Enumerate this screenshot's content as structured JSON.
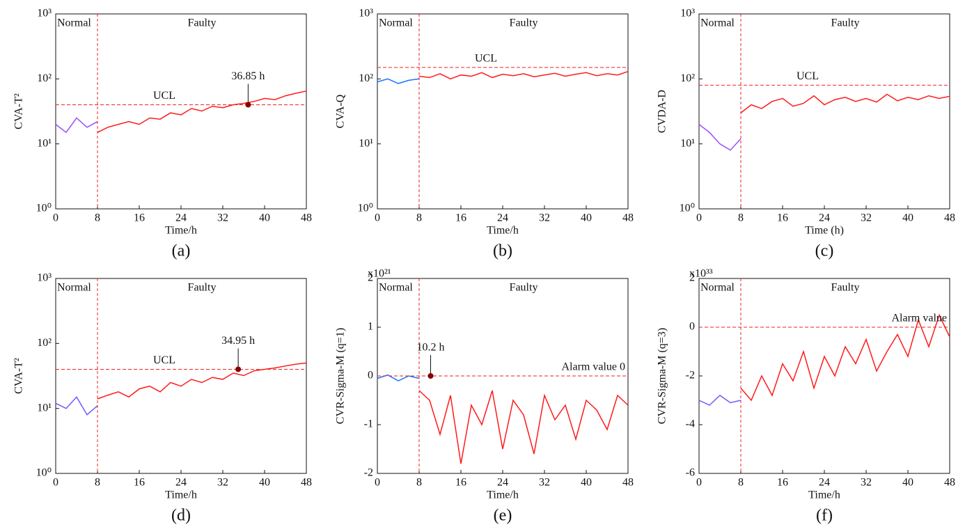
{
  "chart_data": [
    {
      "type": "line",
      "label": "(a)",
      "x_label": "Time/h",
      "y_label": "CVA-T²",
      "log_y": true,
      "ylim": [
        1,
        1000
      ],
      "yticks": [
        {
          "value": 1,
          "label": "10⁰"
        },
        {
          "value": 10,
          "label": "10¹"
        },
        {
          "value": 100,
          "label": "10²"
        },
        {
          "value": 1000,
          "label": "10³"
        }
      ],
      "xlim": [
        0,
        48
      ],
      "xticks": [
        0,
        8,
        16,
        24,
        32,
        40,
        48
      ],
      "normal_text": "Normal",
      "faulty_text": "Faulty",
      "fault_time": 8,
      "threshold": {
        "value": 40,
        "label": "UCL"
      },
      "detection": {
        "x": 36.85,
        "label": "36.85 h"
      },
      "series": [
        {
          "color": "#9b4dff",
          "x": [
            0,
            2,
            4,
            6,
            8
          ],
          "values": [
            20,
            15,
            25,
            18,
            22
          ]
        },
        {
          "color": "#ff1a1a",
          "x": [
            8,
            10,
            12,
            14,
            16,
            18,
            20,
            22,
            24,
            26,
            28,
            30,
            32,
            34,
            36,
            38,
            40,
            42,
            44,
            46,
            48
          ],
          "values": [
            15,
            18,
            20,
            22,
            20,
            25,
            24,
            30,
            28,
            35,
            32,
            38,
            36,
            40,
            42,
            45,
            50,
            48,
            55,
            60,
            65
          ]
        }
      ]
    },
    {
      "type": "line",
      "label": "(b)",
      "x_label": "Time/h",
      "y_label": "CVA-Q",
      "log_y": true,
      "ylim": [
        1,
        1000
      ],
      "yticks": [
        {
          "value": 1,
          "label": "10⁰"
        },
        {
          "value": 10,
          "label": "10¹"
        },
        {
          "value": 100,
          "label": "10²"
        },
        {
          "value": 1000,
          "label": "10³"
        }
      ],
      "xlim": [
        0,
        48
      ],
      "xticks": [
        0,
        8,
        16,
        24,
        32,
        40,
        48
      ],
      "normal_text": "Normal",
      "faulty_text": "Faulty",
      "fault_time": 8,
      "threshold": {
        "value": 150,
        "label": "UCL"
      },
      "series": [
        {
          "color": "#1a73ff",
          "x": [
            0,
            2,
            4,
            6,
            8
          ],
          "values": [
            90,
            100,
            85,
            95,
            100
          ]
        },
        {
          "color": "#ff1a1a",
          "x": [
            8,
            10,
            12,
            14,
            16,
            18,
            20,
            22,
            24,
            26,
            28,
            30,
            32,
            34,
            36,
            38,
            40,
            42,
            44,
            46,
            48
          ],
          "values": [
            110,
            105,
            120,
            100,
            115,
            110,
            125,
            105,
            118,
            112,
            120,
            108,
            115,
            122,
            110,
            118,
            125,
            112,
            120,
            115,
            130
          ]
        }
      ]
    },
    {
      "type": "line",
      "label": "(c)",
      "x_label": "Time (h)",
      "y_label": "CVDA-D",
      "log_y": true,
      "ylim": [
        1,
        1000
      ],
      "yticks": [
        {
          "value": 1,
          "label": "10⁰"
        },
        {
          "value": 10,
          "label": "10¹"
        },
        {
          "value": 100,
          "label": "10²"
        },
        {
          "value": 1000,
          "label": "10³"
        }
      ],
      "xlim": [
        0,
        48
      ],
      "xticks": [
        0,
        8,
        16,
        24,
        32,
        40,
        48
      ],
      "normal_text": "Normal",
      "faulty_text": "Faulty",
      "fault_time": 8,
      "threshold": {
        "value": 80,
        "label": "UCL"
      },
      "series": [
        {
          "color": "#9b4dff",
          "x": [
            0,
            2,
            4,
            6,
            8
          ],
          "values": [
            20,
            15,
            10,
            8,
            12
          ]
        },
        {
          "color": "#ff1a1a",
          "x": [
            8,
            10,
            12,
            14,
            16,
            18,
            20,
            22,
            24,
            26,
            28,
            30,
            32,
            34,
            36,
            38,
            40,
            42,
            44,
            46,
            48
          ],
          "values": [
            30,
            40,
            35,
            45,
            50,
            38,
            42,
            55,
            40,
            48,
            52,
            45,
            50,
            44,
            58,
            46,
            52,
            48,
            55,
            50,
            54
          ]
        }
      ]
    },
    {
      "type": "line",
      "label": "(d)",
      "x_label": "Time/h",
      "y_label": "CVA-T²",
      "log_y": true,
      "ylim": [
        1,
        1000
      ],
      "yticks": [
        {
          "value": 1,
          "label": "10⁰"
        },
        {
          "value": 10,
          "label": "10¹"
        },
        {
          "value": 100,
          "label": "10²"
        },
        {
          "value": 1000,
          "label": "10³"
        }
      ],
      "xlim": [
        0,
        48
      ],
      "xticks": [
        0,
        8,
        16,
        24,
        32,
        40,
        48
      ],
      "normal_text": "Normal",
      "faulty_text": "Faulty",
      "fault_time": 8,
      "threshold": {
        "value": 40,
        "label": "UCL"
      },
      "detection": {
        "x": 34.95,
        "label": "34.95 h"
      },
      "series": [
        {
          "color": "#6a5cff",
          "x": [
            0,
            2,
            4,
            6,
            8
          ],
          "values": [
            12,
            10,
            15,
            8,
            11
          ]
        },
        {
          "color": "#ff1a1a",
          "x": [
            8,
            10,
            12,
            14,
            16,
            18,
            20,
            22,
            24,
            26,
            28,
            30,
            32,
            34,
            36,
            38,
            40,
            42,
            44,
            46,
            48
          ],
          "values": [
            14,
            16,
            18,
            15,
            20,
            22,
            18,
            25,
            22,
            28,
            25,
            30,
            28,
            35,
            32,
            38,
            40,
            42,
            45,
            48,
            50
          ]
        }
      ]
    },
    {
      "type": "line",
      "label": "(e)",
      "x_label": "Time/h",
      "y_label": "CVR-Sigma-M (q=1)",
      "log_y": false,
      "y_multiplier": "x10²¹",
      "ylim": [
        -2,
        2
      ],
      "yticks": [
        -2,
        -1,
        0,
        1,
        2
      ],
      "xlim": [
        0,
        48
      ],
      "xticks": [
        0,
        8,
        16,
        24,
        32,
        40,
        48
      ],
      "normal_text": "Normal",
      "faulty_text": "Faulty",
      "fault_time": 8,
      "threshold": {
        "value": 0,
        "label": "Alarm value 0"
      },
      "detection": {
        "x": 10.2,
        "label": "10.2 h"
      },
      "series": [
        {
          "color": "#1a73ff",
          "x": [
            0,
            2,
            4,
            6,
            8
          ],
          "values": [
            -0.05,
            0.02,
            -0.1,
            0,
            -0.05
          ]
        },
        {
          "color": "#ff1a1a",
          "x": [
            8,
            10,
            12,
            14,
            16,
            18,
            20,
            22,
            24,
            26,
            28,
            30,
            32,
            34,
            36,
            38,
            40,
            42,
            44,
            46,
            48
          ],
          "values": [
            -0.3,
            -0.5,
            -1.2,
            -0.4,
            -1.8,
            -0.6,
            -1.0,
            -0.3,
            -1.5,
            -0.5,
            -0.8,
            -1.6,
            -0.4,
            -0.9,
            -0.6,
            -1.3,
            -0.5,
            -0.7,
            -1.1,
            -0.4,
            -0.6
          ]
        }
      ]
    },
    {
      "type": "line",
      "label": "(f)",
      "x_label": "Time/h",
      "y_label": "CVR-Sigma-M (q=3)",
      "log_y": false,
      "y_multiplier": "x10³³",
      "ylim": [
        -6,
        2
      ],
      "yticks": [
        -6,
        -4,
        -2,
        0,
        2
      ],
      "xlim": [
        0,
        48
      ],
      "xticks": [
        0,
        8,
        16,
        24,
        32,
        40,
        48
      ],
      "normal_text": "Normal",
      "faulty_text": "Faulty",
      "fault_time": 8,
      "threshold": {
        "value": 0,
        "label": "Alarm value"
      },
      "series": [
        {
          "color": "#6a5cff",
          "x": [
            0,
            2,
            4,
            6,
            8
          ],
          "values": [
            -3,
            -3.2,
            -2.8,
            -3.1,
            -3
          ]
        },
        {
          "color": "#ff1a1a",
          "x": [
            8,
            10,
            12,
            14,
            16,
            18,
            20,
            22,
            24,
            26,
            28,
            30,
            32,
            34,
            36,
            38,
            40,
            42,
            44,
            46,
            48
          ],
          "values": [
            -2.5,
            -3,
            -2,
            -2.8,
            -1.5,
            -2.2,
            -1,
            -2.5,
            -1.2,
            -2,
            -0.8,
            -1.5,
            -0.5,
            -1.8,
            -1,
            -0.3,
            -1.2,
            0.3,
            -0.8,
            0.5,
            -0.4
          ]
        }
      ]
    }
  ]
}
